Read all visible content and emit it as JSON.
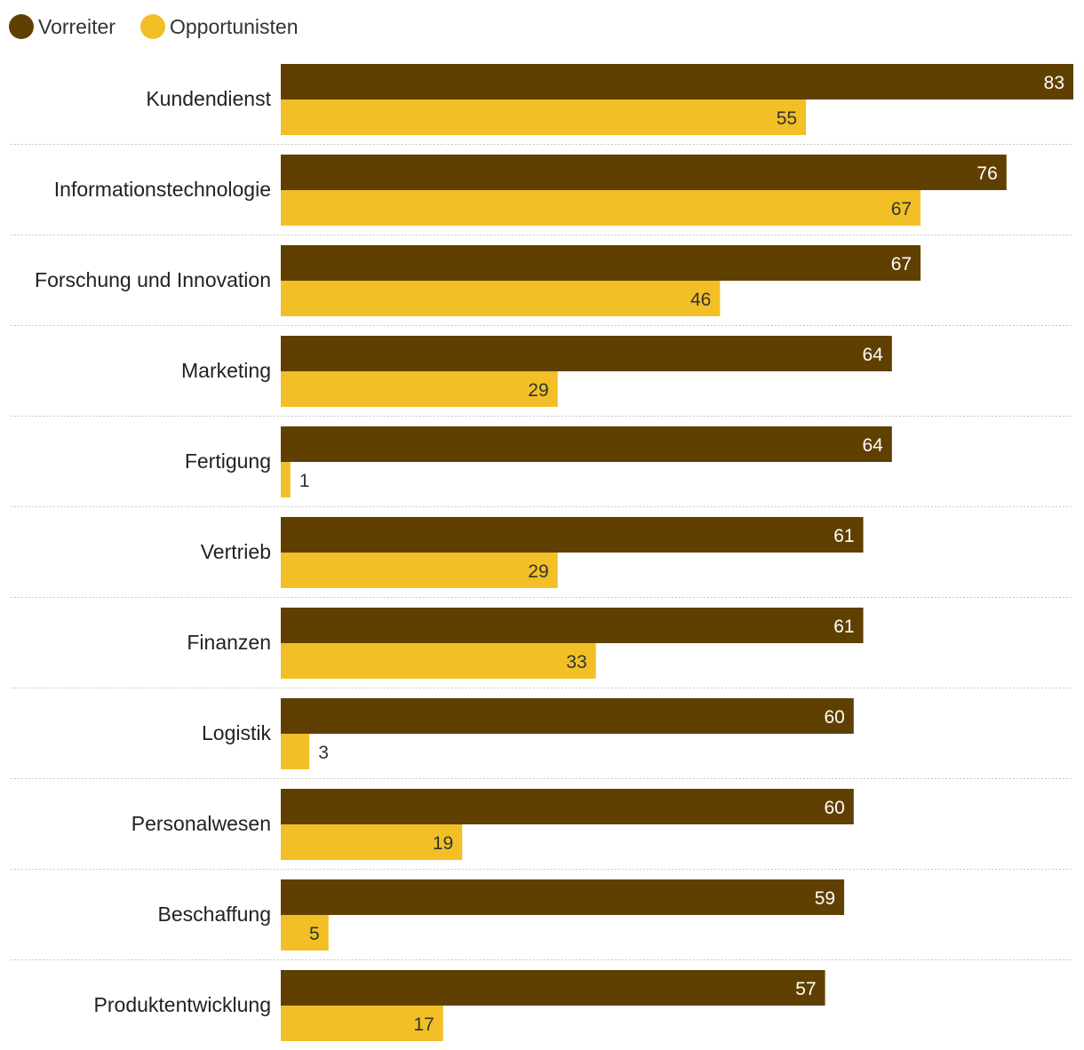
{
  "chart_data": {
    "type": "bar",
    "orientation": "horizontal",
    "legend": {
      "position": "top-left",
      "items": [
        {
          "name": "Vorreiter",
          "color": "#604000"
        },
        {
          "name": "Opportunisten",
          "color": "#f2bf26"
        }
      ]
    },
    "categories": [
      "Kundendienst",
      "Informationstechnologie",
      "Forschung und Innovation",
      "Marketing",
      "Fertigung",
      "Vertrieb",
      "Finanzen",
      "Logistik",
      "Personalwesen",
      "Beschaffung",
      "Produktentwicklung"
    ],
    "series": [
      {
        "name": "Vorreiter",
        "color": "#604000",
        "label_color": "#ffffff",
        "values": [
          83,
          76,
          67,
          64,
          64,
          61,
          61,
          60,
          60,
          59,
          57
        ]
      },
      {
        "name": "Opportunisten",
        "color": "#f2bf26",
        "label_color": "#333333",
        "values": [
          55,
          67,
          46,
          29,
          1,
          29,
          33,
          3,
          19,
          5,
          17
        ]
      }
    ],
    "xlim": [
      0,
      83
    ],
    "grid": false,
    "title": "",
    "xlabel": "",
    "ylabel": ""
  }
}
